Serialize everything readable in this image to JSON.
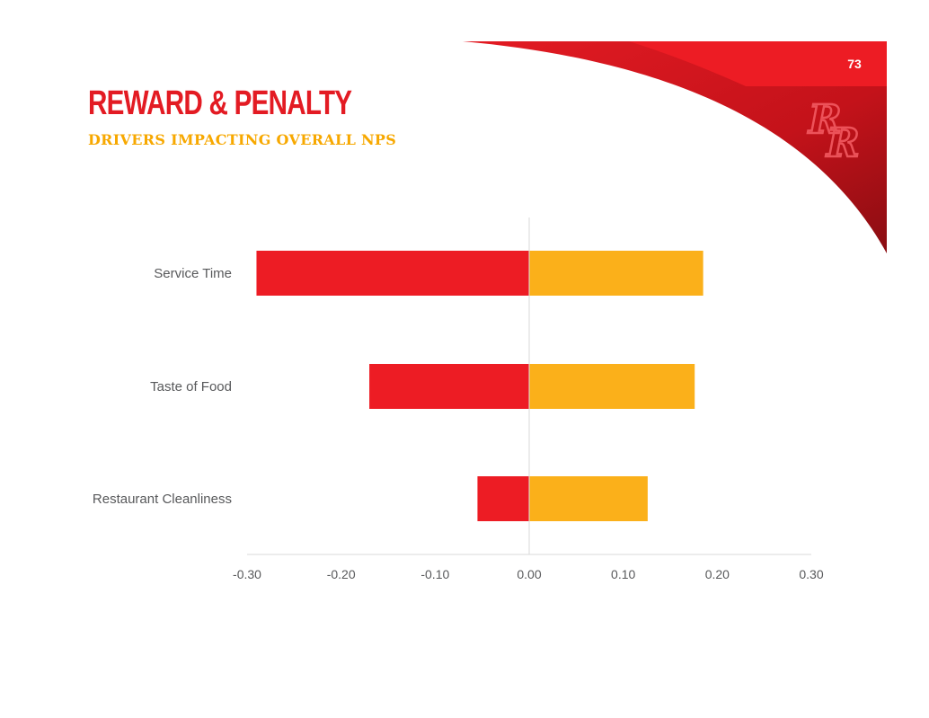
{
  "page": {
    "number": "73",
    "title": "REWARD & PENALTY",
    "subtitle": "DRIVERS IMPACTING OVERALL NPS"
  },
  "colors": {
    "brand_red": "#e31b23",
    "dark_red": "#b3121a",
    "penalty": "#ed1c24",
    "reward": "#fbb01a",
    "axis_text": "#58595b",
    "axis_line": "#d9d9d9"
  },
  "logo": {
    "text": "RR",
    "icon": "rr-monogram-logo"
  },
  "chart_data": {
    "type": "bar",
    "orientation": "horizontal",
    "stacked": "diverging",
    "categories": [
      "Service Time",
      "Taste of Food",
      "Restaurant Cleanliness"
    ],
    "series": [
      {
        "values": [
          -0.29,
          -0.17,
          -0.055
        ],
        "color": "#ed1c24"
      },
      {
        "values": [
          0.185,
          0.176,
          0.126
        ],
        "color": "#fbb01a"
      }
    ],
    "xlim": [
      -0.3,
      0.3
    ],
    "xticks": [
      "-0.30",
      "-0.20",
      "-0.10",
      "0.00",
      "0.10",
      "0.20",
      "0.30"
    ],
    "grid": false,
    "legend": "none"
  }
}
